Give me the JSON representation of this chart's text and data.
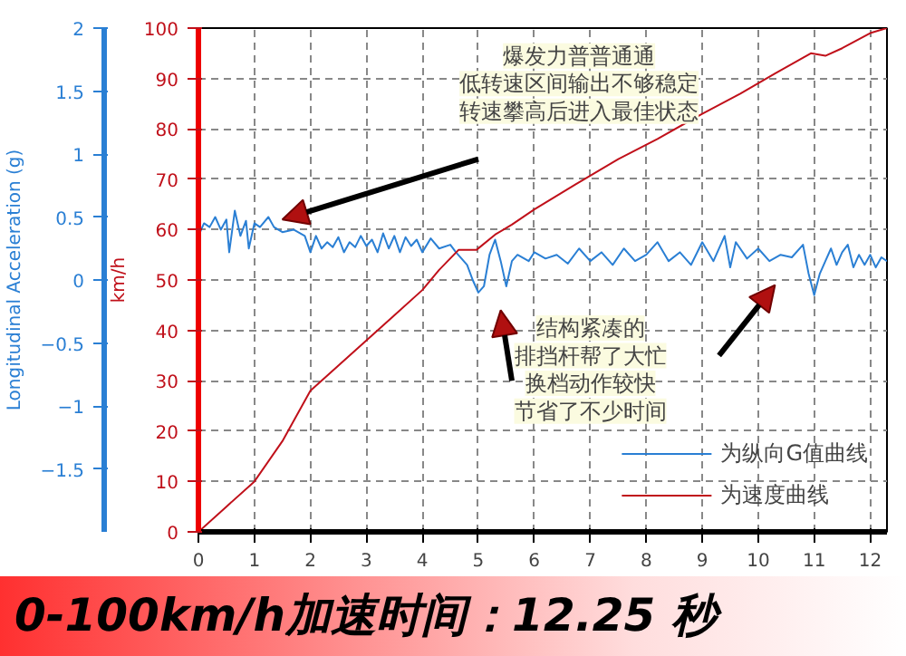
{
  "chart_data": {
    "type": "line",
    "title": "0-100km/h加速时间：12.25 秒",
    "ylabel": "km/h",
    "y2label": "Longitudinal Acceleration (g)",
    "annotations": [
      "爆发力普普通通",
      "低转速区间输出不够稳定",
      "转速攀高后进入最佳状态",
      "结构紧凑的",
      "排挡杆帮了大忙",
      "换档动作较快",
      "节省了不少时间"
    ],
    "xlim": [
      0,
      12.3
    ],
    "xticks": [
      0,
      1,
      2,
      3,
      4,
      5,
      6,
      7,
      8,
      9,
      10,
      11,
      12
    ],
    "ylim": [
      0,
      100
    ],
    "yticks": [
      0,
      10,
      20,
      30,
      40,
      50,
      60,
      70,
      80,
      90,
      100
    ],
    "y2lim": [
      -2,
      2
    ],
    "y2ticks": [
      -1.5,
      -1,
      -0.5,
      0,
      0.5,
      1,
      1.5,
      2
    ],
    "grid": true,
    "legend": "bottom right",
    "line_style": "solid",
    "series": [
      {
        "name": "为纵向G值曲线",
        "color": "#2a7fd4",
        "axis": "y2",
        "x": [
          0.0,
          0.1,
          0.2,
          0.3,
          0.4,
          0.5,
          0.55,
          0.65,
          0.75,
          0.85,
          0.9,
          1.0,
          1.1,
          1.25,
          1.35,
          1.5,
          1.7,
          1.9,
          2.0,
          2.1,
          2.2,
          2.3,
          2.4,
          2.5,
          2.6,
          2.7,
          2.8,
          2.9,
          3.0,
          3.1,
          3.2,
          3.3,
          3.4,
          3.5,
          3.6,
          3.7,
          3.8,
          3.9,
          4.0,
          4.15,
          4.3,
          4.5,
          4.6,
          4.8,
          4.9,
          5.0,
          5.1,
          5.2,
          5.3,
          5.4,
          5.5,
          5.6,
          5.7,
          5.9,
          6.0,
          6.2,
          6.4,
          6.6,
          6.8,
          7.0,
          7.2,
          7.4,
          7.6,
          7.8,
          8.0,
          8.2,
          8.4,
          8.6,
          8.8,
          9.0,
          9.2,
          9.4,
          9.5,
          9.6,
          9.8,
          10.0,
          10.2,
          10.4,
          10.6,
          10.8,
          10.9,
          11.0,
          11.1,
          11.2,
          11.3,
          11.4,
          11.5,
          11.6,
          11.7,
          11.8,
          11.9,
          12.0,
          12.1,
          12.2,
          12.3
        ],
        "values": [
          0.35,
          0.45,
          0.42,
          0.5,
          0.4,
          0.48,
          0.22,
          0.55,
          0.35,
          0.47,
          0.25,
          0.45,
          0.42,
          0.5,
          0.42,
          0.38,
          0.4,
          0.35,
          0.22,
          0.35,
          0.25,
          0.3,
          0.26,
          0.34,
          0.22,
          0.3,
          0.26,
          0.35,
          0.27,
          0.32,
          0.22,
          0.37,
          0.25,
          0.35,
          0.22,
          0.34,
          0.27,
          0.32,
          0.22,
          0.33,
          0.25,
          0.28,
          0.22,
          0.12,
          0.0,
          -0.1,
          -0.05,
          0.2,
          0.32,
          0.15,
          -0.05,
          0.15,
          0.2,
          0.15,
          0.22,
          0.17,
          0.2,
          0.13,
          0.25,
          0.15,
          0.22,
          0.12,
          0.25,
          0.15,
          0.2,
          0.3,
          0.15,
          0.22,
          0.12,
          0.3,
          0.15,
          0.35,
          0.1,
          0.3,
          0.17,
          0.25,
          0.15,
          0.2,
          0.18,
          0.28,
          0.05,
          -0.12,
          0.05,
          0.15,
          0.25,
          0.12,
          0.22,
          0.28,
          0.1,
          0.2,
          0.12,
          0.2,
          0.1,
          0.18,
          0.15
        ]
      },
      {
        "name": "为速度曲线",
        "color": "#c0101a",
        "x": [
          0,
          0.5,
          1,
          1.5,
          2,
          2.5,
          3,
          3.5,
          4,
          4.3,
          4.65,
          4.97,
          5.3,
          5.6,
          6,
          6.74,
          7.5,
          8.2,
          9,
          9.68,
          10.3,
          10.94,
          11.2,
          11.5,
          12,
          12.3
        ],
        "values": [
          0,
          5,
          10,
          18,
          28,
          33,
          38,
          43,
          48,
          52,
          56,
          56,
          59,
          61,
          64,
          69,
          74,
          78,
          83,
          87,
          91,
          95,
          94.5,
          96,
          99,
          100
        ]
      }
    ]
  }
}
